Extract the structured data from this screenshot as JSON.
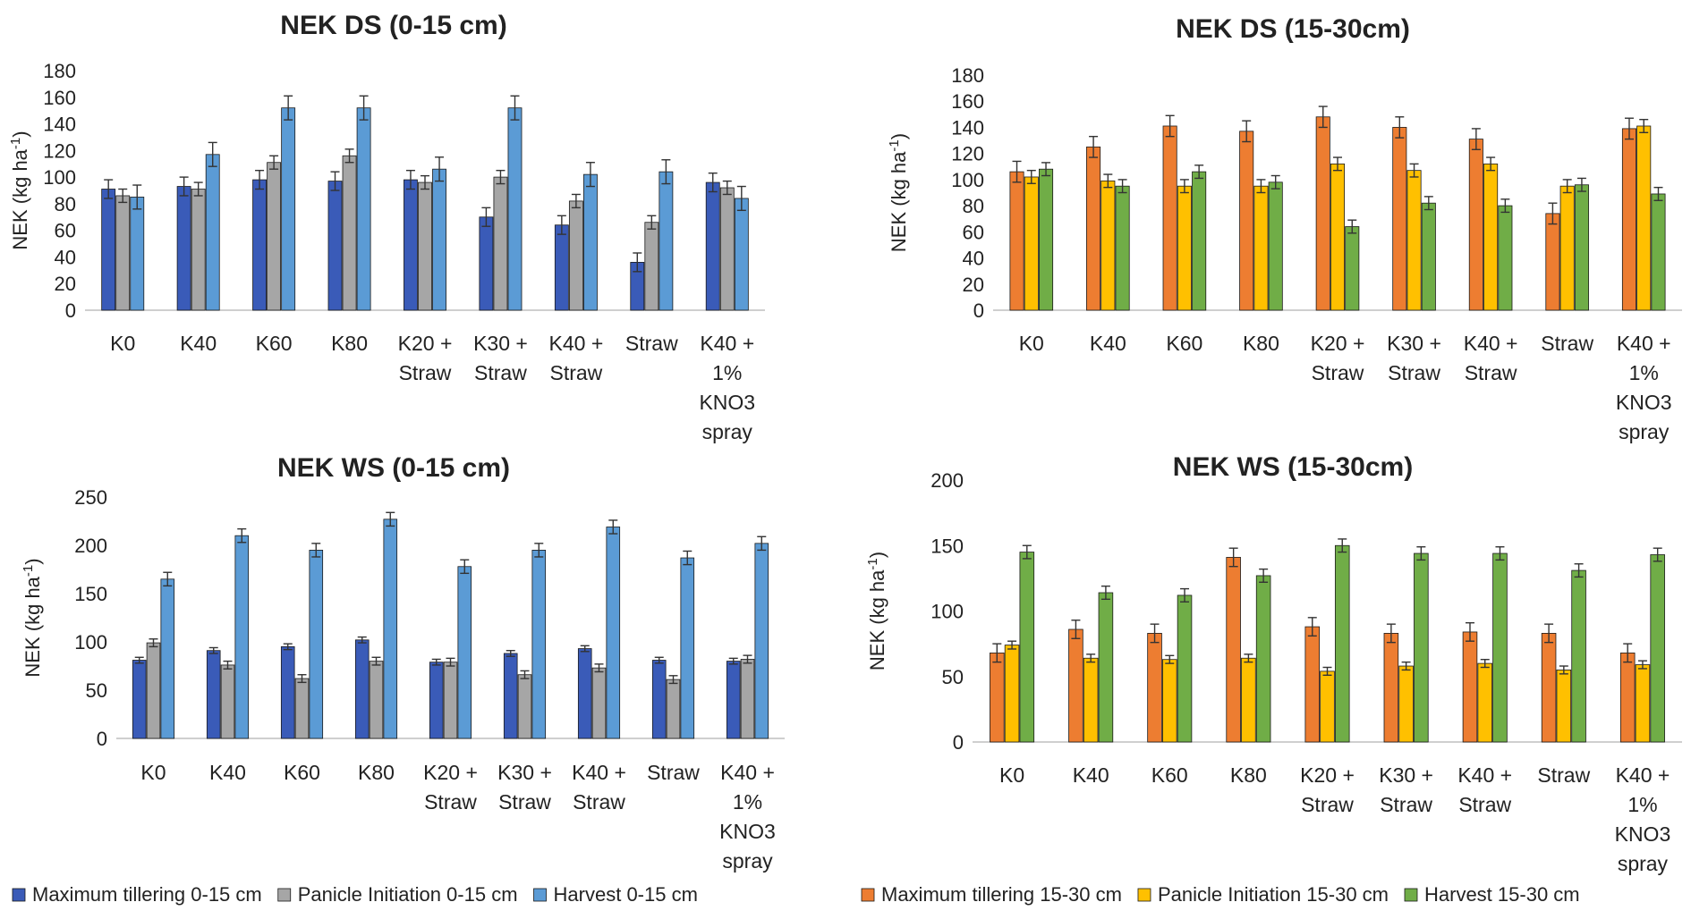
{
  "chart_data": [
    {
      "type": "bar",
      "title": "NEK DS (0-15 cm)",
      "ylabel": "NEK (kg ha",
      "ylabel_sup": "-1",
      "ylabel_close": ")",
      "ylim": [
        0,
        180
      ],
      "yticks": [
        0,
        20,
        40,
        60,
        80,
        100,
        120,
        140,
        160,
        180
      ],
      "categories": [
        [
          "K0"
        ],
        [
          "K40"
        ],
        [
          "K60"
        ],
        [
          "K80"
        ],
        [
          "K20 +",
          "Straw"
        ],
        [
          "K30 +",
          "Straw"
        ],
        [
          "K40 +",
          "Straw"
        ],
        [
          "Straw"
        ],
        [
          "K40 +",
          "1%",
          "KNO3",
          "spray"
        ]
      ],
      "series": [
        {
          "name": "Maximum tillering 0-15 cm",
          "color": "#3a5bb8",
          "values": [
            91,
            93,
            98,
            97,
            98,
            70,
            64,
            36,
            96
          ],
          "errors": [
            7,
            7,
            7,
            7,
            7,
            7,
            7,
            7,
            7
          ]
        },
        {
          "name": "Panicle Initiation 0-15 cm",
          "color": "#a6a6a6",
          "values": [
            86,
            91,
            111,
            116,
            96,
            100,
            82,
            66,
            92
          ],
          "errors": [
            5,
            5,
            5,
            5,
            5,
            5,
            5,
            5,
            5
          ]
        },
        {
          "name": "Harvest 0-15 cm",
          "color": "#5b9bd5",
          "values": [
            85,
            117,
            152,
            152,
            106,
            152,
            102,
            104,
            84
          ],
          "errors": [
            9,
            9,
            9,
            9,
            9,
            9,
            9,
            9,
            9
          ]
        }
      ]
    },
    {
      "type": "bar",
      "title": "NEK DS (15-30cm)",
      "ylabel": "NEK (kg ha",
      "ylabel_sup": "-1",
      "ylabel_close": ")",
      "ylim": [
        0,
        180
      ],
      "yticks": [
        0,
        20,
        40,
        60,
        80,
        100,
        120,
        140,
        160,
        180
      ],
      "categories": [
        [
          "K0"
        ],
        [
          "K40"
        ],
        [
          "K60"
        ],
        [
          "K80"
        ],
        [
          "K20 +",
          "Straw"
        ],
        [
          "K30 +",
          "Straw"
        ],
        [
          "K40 +",
          "Straw"
        ],
        [
          "Straw"
        ],
        [
          "K40 +",
          "1%",
          "KNO3",
          "spray"
        ]
      ],
      "series": [
        {
          "name": "Maximum tillering 15-30 cm",
          "color": "#ed7d31",
          "values": [
            106,
            125,
            141,
            137,
            148,
            140,
            131,
            74,
            139
          ],
          "errors": [
            8,
            8,
            8,
            8,
            8,
            8,
            8,
            8,
            8
          ]
        },
        {
          "name": "Panicle Initiation 15-30 cm",
          "color": "#ffc000",
          "values": [
            102,
            99,
            95,
            95,
            112,
            107,
            112,
            95,
            141
          ],
          "errors": [
            5,
            5,
            5,
            5,
            5,
            5,
            5,
            5,
            5
          ]
        },
        {
          "name": "Harvest 15-30 cm",
          "color": "#70ad47",
          "values": [
            108,
            95,
            106,
            98,
            64,
            82,
            80,
            96,
            89
          ],
          "errors": [
            5,
            5,
            5,
            5,
            5,
            5,
            5,
            5,
            5
          ]
        }
      ]
    },
    {
      "type": "bar",
      "title": "NEK WS (0-15 cm)",
      "ylabel": "NEK (kg ha",
      "ylabel_sup": "-1",
      "ylabel_close": ")",
      "ylim": [
        0,
        250
      ],
      "yticks": [
        0,
        50,
        100,
        150,
        200,
        250
      ],
      "categories": [
        [
          "K0"
        ],
        [
          "K40"
        ],
        [
          "K60"
        ],
        [
          "K80"
        ],
        [
          "K20 +",
          "Straw"
        ],
        [
          "K30 +",
          "Straw"
        ],
        [
          "K40 +",
          "Straw"
        ],
        [
          "Straw"
        ],
        [
          "K40 +",
          "1%",
          "KNO3",
          "spray"
        ]
      ],
      "series": [
        {
          "name": "Maximum tillering 0-15 cm",
          "color": "#3a5bb8",
          "values": [
            81,
            91,
            95,
            102,
            79,
            88,
            93,
            81,
            80
          ],
          "errors": [
            3,
            3,
            3,
            3,
            3,
            3,
            3,
            3,
            3
          ]
        },
        {
          "name": "Panicle Initiation 0-15 cm",
          "color": "#a6a6a6",
          "values": [
            99,
            76,
            62,
            80,
            79,
            66,
            73,
            61,
            82
          ],
          "errors": [
            4,
            4,
            4,
            4,
            4,
            4,
            4,
            4,
            4
          ]
        },
        {
          "name": "Harvest 0-15 cm",
          "color": "#5b9bd5",
          "values": [
            165,
            210,
            195,
            227,
            178,
            195,
            219,
            187,
            202
          ],
          "errors": [
            7,
            7,
            7,
            7,
            7,
            7,
            7,
            7,
            7
          ]
        }
      ]
    },
    {
      "type": "bar",
      "title": "NEK WS (15-30cm)",
      "ylabel": "NEK (kg ha",
      "ylabel_sup": "-1",
      "ylabel_close": ")",
      "ylim": [
        0,
        200
      ],
      "yticks": [
        0,
        50,
        100,
        150,
        200
      ],
      "categories": [
        [
          "K0"
        ],
        [
          "K40"
        ],
        [
          "K60"
        ],
        [
          "K80"
        ],
        [
          "K20 +",
          "Straw"
        ],
        [
          "K30 +",
          "Straw"
        ],
        [
          "K40 +",
          "Straw"
        ],
        [
          "Straw"
        ],
        [
          "K40 +",
          "1%",
          "KNO3",
          "spray"
        ]
      ],
      "series": [
        {
          "name": "Maximum tillering 15-30 cm",
          "color": "#ed7d31",
          "values": [
            68,
            86,
            83,
            141,
            88,
            83,
            84,
            83,
            68
          ],
          "errors": [
            7,
            7,
            7,
            7,
            7,
            7,
            7,
            7,
            7
          ]
        },
        {
          "name": "Panicle Initiation 15-30 cm",
          "color": "#ffc000",
          "values": [
            74,
            64,
            63,
            64,
            54,
            58,
            60,
            55,
            59
          ],
          "errors": [
            3,
            3,
            3,
            3,
            3,
            3,
            3,
            3,
            3
          ]
        },
        {
          "name": "Harvest 15-30 cm",
          "color": "#70ad47",
          "values": [
            145,
            114,
            112,
            127,
            150,
            144,
            144,
            131,
            143
          ],
          "errors": [
            5,
            5,
            5,
            5,
            5,
            5,
            5,
            5,
            5
          ]
        }
      ]
    }
  ],
  "legends": [
    {
      "items": [
        {
          "label": "Maximum tillering 0-15 cm",
          "color": "#3a5bb8"
        },
        {
          "label": "Panicle Initiation 0-15 cm",
          "color": "#a6a6a6"
        },
        {
          "label": "Harvest 0-15 cm",
          "color": "#5b9bd5"
        }
      ]
    },
    {
      "items": [
        {
          "label": "Maximum tillering 15-30 cm",
          "color": "#ed7d31"
        },
        {
          "label": "Panicle Initiation 15-30 cm",
          "color": "#ffc000"
        },
        {
          "label": "Harvest 15-30 cm",
          "color": "#70ad47"
        }
      ]
    }
  ]
}
